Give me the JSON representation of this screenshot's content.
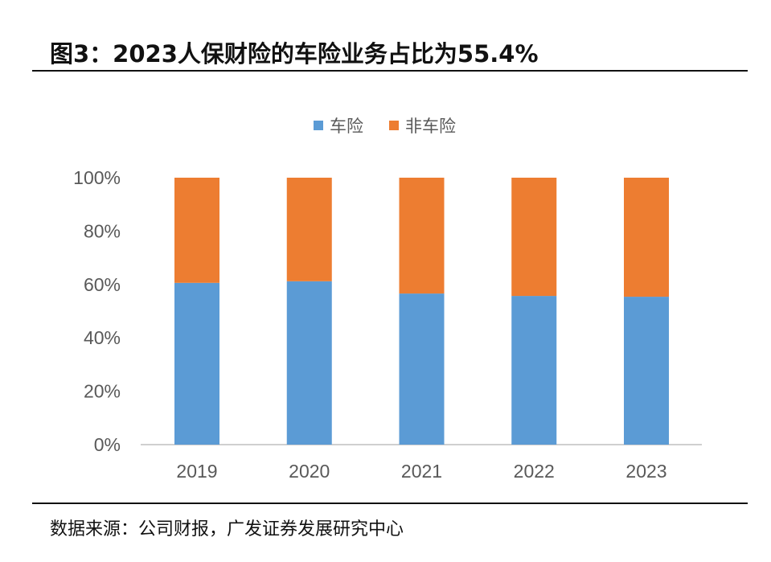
{
  "title": "图3：2023人保财险的车险业务占比为55.4%",
  "source": "数据来源：公司财报，广发证券发展研究中心",
  "chart_data": {
    "type": "bar",
    "stacked": true,
    "categories": [
      "2019",
      "2020",
      "2021",
      "2022",
      "2023"
    ],
    "series": [
      {
        "name": "车险",
        "color": "#5b9bd5",
        "values": [
          60.6,
          61.2,
          56.6,
          55.7,
          55.4
        ]
      },
      {
        "name": "非车险",
        "color": "#ed7d31",
        "values": [
          39.4,
          38.8,
          43.4,
          44.3,
          44.6
        ]
      }
    ],
    "yticks": [
      "0%",
      "20%",
      "40%",
      "60%",
      "80%",
      "100%"
    ],
    "ylim": [
      0,
      100
    ],
    "legend": "top",
    "grid": false
  }
}
